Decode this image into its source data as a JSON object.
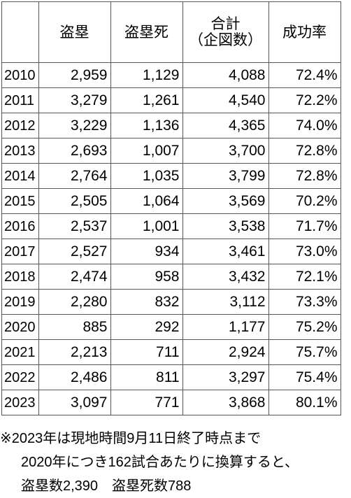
{
  "table": {
    "headers": {
      "year": "",
      "steals": "盗塁",
      "caught_stealing": "盗塁死",
      "total_line1": "合計",
      "total_line2": "（企図数）",
      "success_rate": "成功率"
    },
    "rows": [
      {
        "year": "2010",
        "steals": "2,959",
        "caught_stealing": "1,129",
        "total": "4,088",
        "rate": "72.4%"
      },
      {
        "year": "2011",
        "steals": "3,279",
        "caught_stealing": "1,261",
        "total": "4,540",
        "rate": "72.2%"
      },
      {
        "year": "2012",
        "steals": "3,229",
        "caught_stealing": "1,136",
        "total": "4,365",
        "rate": "74.0%"
      },
      {
        "year": "2013",
        "steals": "2,693",
        "caught_stealing": "1,007",
        "total": "3,700",
        "rate": "72.8%"
      },
      {
        "year": "2014",
        "steals": "2,764",
        "caught_stealing": "1,035",
        "total": "3,799",
        "rate": "72.8%"
      },
      {
        "year": "2015",
        "steals": "2,505",
        "caught_stealing": "1,064",
        "total": "3,569",
        "rate": "70.2%"
      },
      {
        "year": "2016",
        "steals": "2,537",
        "caught_stealing": "1,001",
        "total": "3,538",
        "rate": "71.7%"
      },
      {
        "year": "2017",
        "steals": "2,527",
        "caught_stealing": "934",
        "total": "3,461",
        "rate": "73.0%"
      },
      {
        "year": "2018",
        "steals": "2,474",
        "caught_stealing": "958",
        "total": "3,432",
        "rate": "72.1%"
      },
      {
        "year": "2019",
        "steals": "2,280",
        "caught_stealing": "832",
        "total": "3,112",
        "rate": "73.3%"
      },
      {
        "year": "2020",
        "steals": "885",
        "caught_stealing": "292",
        "total": "1,177",
        "rate": "75.2%"
      },
      {
        "year": "2021",
        "steals": "2,213",
        "caught_stealing": "711",
        "total": "2,924",
        "rate": "75.7%"
      },
      {
        "year": "2022",
        "steals": "2,486",
        "caught_stealing": "811",
        "total": "3,297",
        "rate": "75.4%"
      },
      {
        "year": "2023",
        "steals": "3,097",
        "caught_stealing": "771",
        "total": "3,868",
        "rate": "80.1%"
      }
    ]
  },
  "notes": {
    "line1": "※2023年は現地時間9月11日終了時点まで",
    "line2": "2020年につき162試合あたりに換算すると、",
    "line3": "盗塁数2,390　盗塁死数788"
  }
}
